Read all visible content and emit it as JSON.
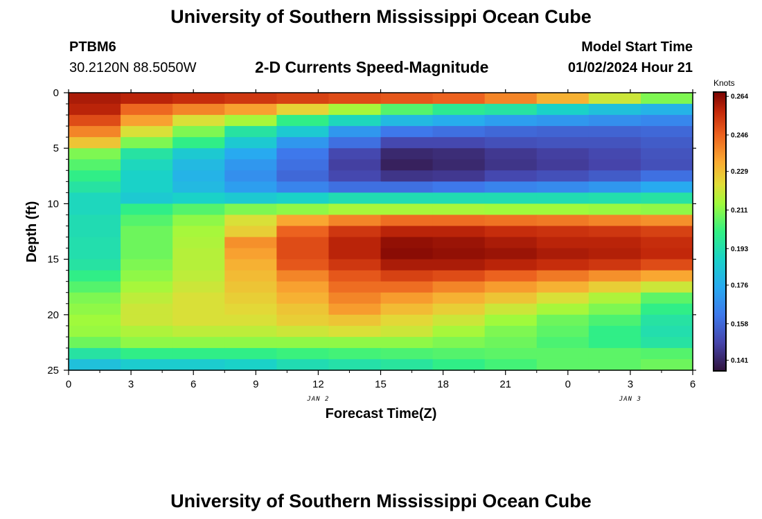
{
  "header": {
    "title": "University of Southern Mississippi Ocean Cube",
    "station_id": "PTBM6",
    "station_coords": "30.2120N  88.5050W",
    "plot_title": "2-D Currents Speed-Magnitude",
    "model_start_label": "Model Start Time",
    "model_start_value": "01/02/2024 Hour 21"
  },
  "footer": {
    "title": "University of Southern Mississippi Ocean Cube"
  },
  "chart_data": {
    "type": "heatmap",
    "title": "2-D Currents Speed-Magnitude",
    "xlabel": "Forecast Time(Z)",
    "ylabel": "Depth (ft)",
    "x_tick_labels": [
      "0",
      "3",
      "6",
      "9",
      "12",
      "15",
      "18",
      "21",
      "0",
      "3",
      "6"
    ],
    "x_date_labels": [
      {
        "label": "JAN 2",
        "at_tick": 4
      },
      {
        "label": "JAN 3",
        "at_tick": 9
      }
    ],
    "y_tick_labels": [
      "0",
      "5",
      "10",
      "15",
      "20",
      "25"
    ],
    "ylim": [
      0,
      25
    ],
    "x_range_hours": [
      0,
      36
    ],
    "x_bins": 12,
    "depth_bins": 25,
    "colorbar": {
      "label": "Knots",
      "tick_labels": [
        "0.264",
        "0.246",
        "0.229",
        "0.211",
        "0.193",
        "0.176",
        "0.158",
        "0.141"
      ],
      "range": [
        0.136,
        0.266
      ]
    },
    "values": [
      [
        0.26,
        0.258,
        0.256,
        0.254,
        0.252,
        0.25,
        0.248,
        0.246,
        0.24,
        0.232,
        0.22,
        0.21
      ],
      [
        0.258,
        0.245,
        0.24,
        0.235,
        0.225,
        0.215,
        0.205,
        0.198,
        0.195,
        0.188,
        0.182,
        0.178
      ],
      [
        0.25,
        0.235,
        0.222,
        0.215,
        0.2,
        0.19,
        0.18,
        0.176,
        0.172,
        0.17,
        0.168,
        0.166
      ],
      [
        0.24,
        0.222,
        0.21,
        0.195,
        0.185,
        0.17,
        0.162,
        0.16,
        0.158,
        0.157,
        0.157,
        0.158
      ],
      [
        0.228,
        0.21,
        0.2,
        0.185,
        0.17,
        0.16,
        0.15,
        0.15,
        0.152,
        0.153,
        0.153,
        0.155
      ],
      [
        0.21,
        0.195,
        0.185,
        0.175,
        0.162,
        0.15,
        0.142,
        0.143,
        0.146,
        0.148,
        0.15,
        0.153
      ],
      [
        0.205,
        0.19,
        0.18,
        0.17,
        0.16,
        0.148,
        0.14,
        0.142,
        0.145,
        0.147,
        0.149,
        0.152
      ],
      [
        0.2,
        0.188,
        0.178,
        0.168,
        0.158,
        0.15,
        0.145,
        0.146,
        0.15,
        0.152,
        0.155,
        0.16
      ],
      [
        0.195,
        0.188,
        0.18,
        0.172,
        0.165,
        0.16,
        0.16,
        0.162,
        0.165,
        0.167,
        0.17,
        0.175
      ],
      [
        0.19,
        0.185,
        0.188,
        0.185,
        0.188,
        0.192,
        0.192,
        0.192,
        0.192,
        0.192,
        0.193,
        0.195
      ],
      [
        0.19,
        0.2,
        0.205,
        0.21,
        0.212,
        0.215,
        0.215,
        0.215,
        0.214,
        0.214,
        0.213,
        0.212
      ],
      [
        0.192,
        0.205,
        0.212,
        0.222,
        0.234,
        0.24,
        0.244,
        0.244,
        0.243,
        0.242,
        0.24,
        0.238
      ],
      [
        0.192,
        0.208,
        0.215,
        0.226,
        0.246,
        0.254,
        0.258,
        0.258,
        0.256,
        0.255,
        0.254,
        0.252
      ],
      [
        0.193,
        0.208,
        0.216,
        0.238,
        0.25,
        0.258,
        0.263,
        0.262,
        0.26,
        0.258,
        0.258,
        0.256
      ],
      [
        0.193,
        0.208,
        0.217,
        0.235,
        0.25,
        0.258,
        0.264,
        0.263,
        0.262,
        0.26,
        0.259,
        0.257
      ],
      [
        0.195,
        0.21,
        0.217,
        0.232,
        0.248,
        0.254,
        0.26,
        0.26,
        0.258,
        0.256,
        0.254,
        0.25
      ],
      [
        0.2,
        0.212,
        0.218,
        0.23,
        0.24,
        0.248,
        0.252,
        0.25,
        0.246,
        0.242,
        0.238,
        0.234
      ],
      [
        0.205,
        0.215,
        0.22,
        0.228,
        0.235,
        0.244,
        0.244,
        0.24,
        0.236,
        0.232,
        0.226,
        0.22
      ],
      [
        0.21,
        0.218,
        0.222,
        0.226,
        0.232,
        0.24,
        0.236,
        0.232,
        0.228,
        0.222,
        0.216,
        0.206
      ],
      [
        0.212,
        0.22,
        0.222,
        0.224,
        0.228,
        0.236,
        0.23,
        0.226,
        0.22,
        0.215,
        0.21,
        0.2
      ],
      [
        0.214,
        0.22,
        0.222,
        0.222,
        0.226,
        0.228,
        0.224,
        0.22,
        0.214,
        0.208,
        0.204,
        0.195
      ],
      [
        0.213,
        0.216,
        0.218,
        0.218,
        0.22,
        0.222,
        0.22,
        0.215,
        0.21,
        0.206,
        0.2,
        0.193
      ],
      [
        0.208,
        0.212,
        0.212,
        0.212,
        0.212,
        0.212,
        0.212,
        0.21,
        0.208,
        0.204,
        0.2,
        0.195
      ],
      [
        0.195,
        0.2,
        0.2,
        0.2,
        0.202,
        0.203,
        0.204,
        0.205,
        0.206,
        0.206,
        0.206,
        0.205
      ],
      [
        0.182,
        0.186,
        0.186,
        0.188,
        0.192,
        0.194,
        0.196,
        0.2,
        0.203,
        0.206,
        0.206,
        0.208
      ]
    ]
  }
}
